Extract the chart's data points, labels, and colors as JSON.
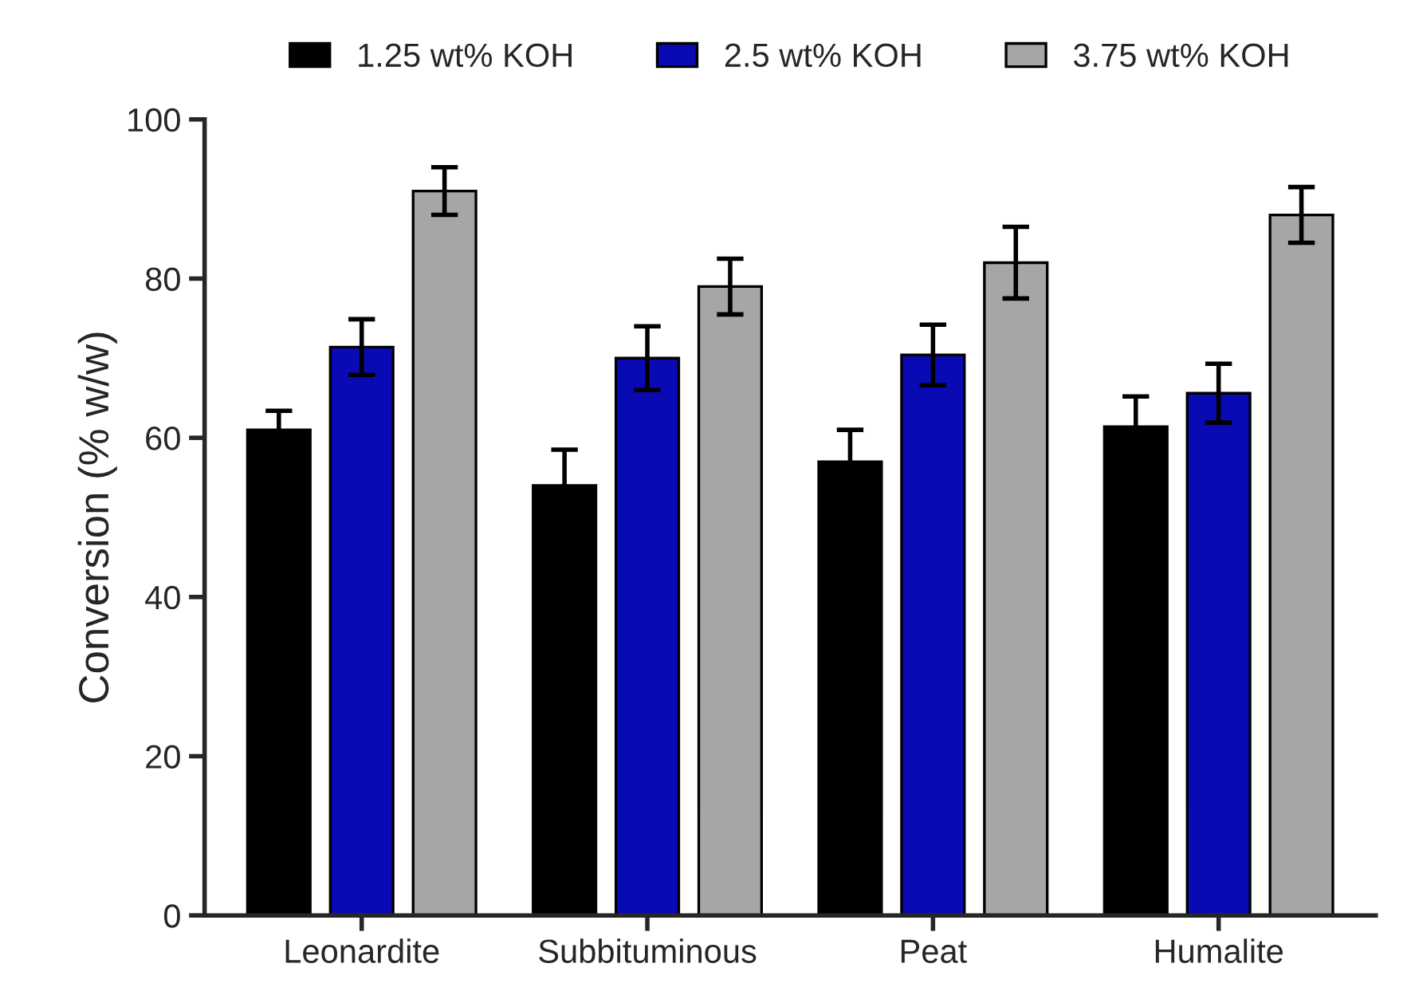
{
  "chart_data": {
    "type": "bar",
    "ylabel": "Conversion (% w/w)",
    "categories": [
      "Leonardite",
      "Subbituminous",
      "Peat",
      "Humalite"
    ],
    "series": [
      {
        "name": "1.25 wt% KOH",
        "color": "#000000",
        "values": [
          61,
          54,
          57,
          61.4
        ],
        "errors": [
          2.4,
          4.5,
          4,
          3.8
        ]
      },
      {
        "name": "2.5 wt% KOH",
        "color": "#0a0ab4",
        "values": [
          71.4,
          70,
          70.4,
          65.6
        ],
        "errors": [
          3.5,
          4,
          3.8,
          3.7
        ]
      },
      {
        "name": "3.75 wt% KOH",
        "color": "#a6a6a6",
        "values": [
          91,
          79,
          82,
          88
        ],
        "errors": [
          3,
          3.5,
          4.5,
          3.5
        ]
      }
    ],
    "ylim": [
      0,
      100
    ],
    "yticks": [
      0,
      20,
      40,
      60,
      80,
      100
    ],
    "grid": false,
    "legend": "top"
  }
}
